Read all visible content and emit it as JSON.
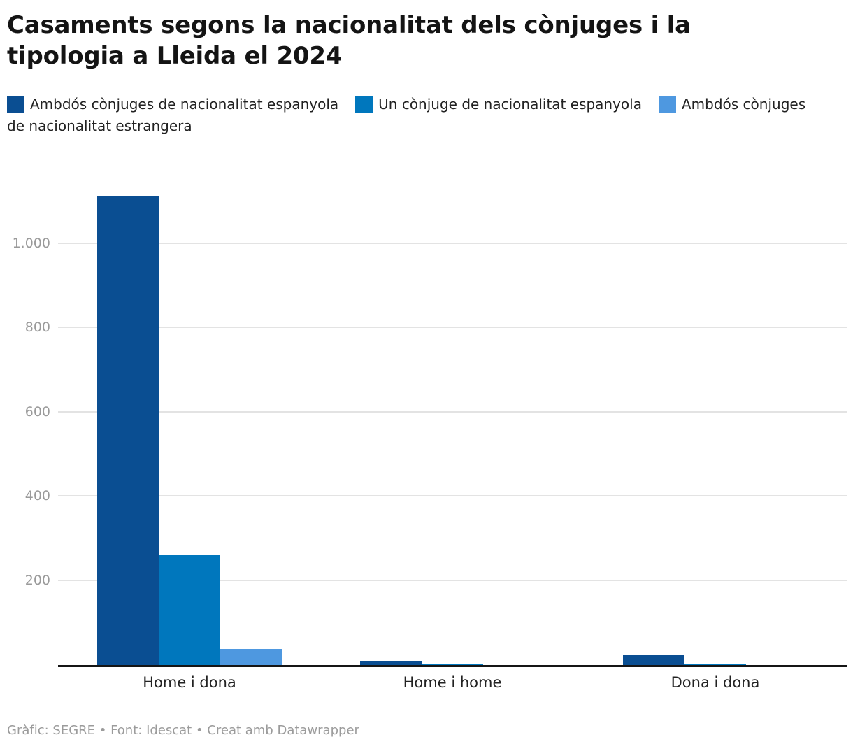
{
  "header": {
    "title": "Casaments segons la nacionalitat dels cònjuges i la tipologia a Lleida el 2024"
  },
  "legend": {
    "items": [
      {
        "label": "Ambdós cònjuges de nacionalitat espanyola",
        "color": "#0a4e92"
      },
      {
        "label": "Un cònjuge de nacionalitat espanyola",
        "color": "#0077bd"
      },
      {
        "label": "Ambdós cònjuges de nacionalitat estrangera",
        "color": "#4e98e0"
      }
    ]
  },
  "chart_data": {
    "type": "bar",
    "title": "Casaments segons la nacionalitat dels cònjuges i la tipologia a Lleida el 2024",
    "categories": [
      "Home i dona",
      "Home i home",
      "Dona i dona"
    ],
    "series": [
      {
        "name": "Ambdós cònjuges de nacionalitat espanyola",
        "color": "#0a4e92",
        "values": [
          1115,
          9,
          24
        ]
      },
      {
        "name": "Un cònjuge de nacionalitat espanyola",
        "color": "#0077bd",
        "values": [
          263,
          4,
          3
        ]
      },
      {
        "name": "Ambdós cònjuges de nacionalitat estrangera",
        "color": "#4e98e0",
        "values": [
          38,
          1,
          1
        ]
      }
    ],
    "xlabel": "",
    "ylabel": "",
    "yticks": [
      {
        "value": 200,
        "label": "200"
      },
      {
        "value": 400,
        "label": "400"
      },
      {
        "value": 600,
        "label": "600"
      },
      {
        "value": 800,
        "label": "800"
      },
      {
        "value": 1000,
        "label": "1.000"
      }
    ],
    "ylim": [
      0,
      1180
    ],
    "grid": true,
    "legend_position": "top",
    "axis_color": "#151515",
    "gridline_color": "#e3e3e3"
  },
  "footer": {
    "text": "Gràfic: SEGRE • Font: Idescat • Creat amb Datawrapper"
  }
}
